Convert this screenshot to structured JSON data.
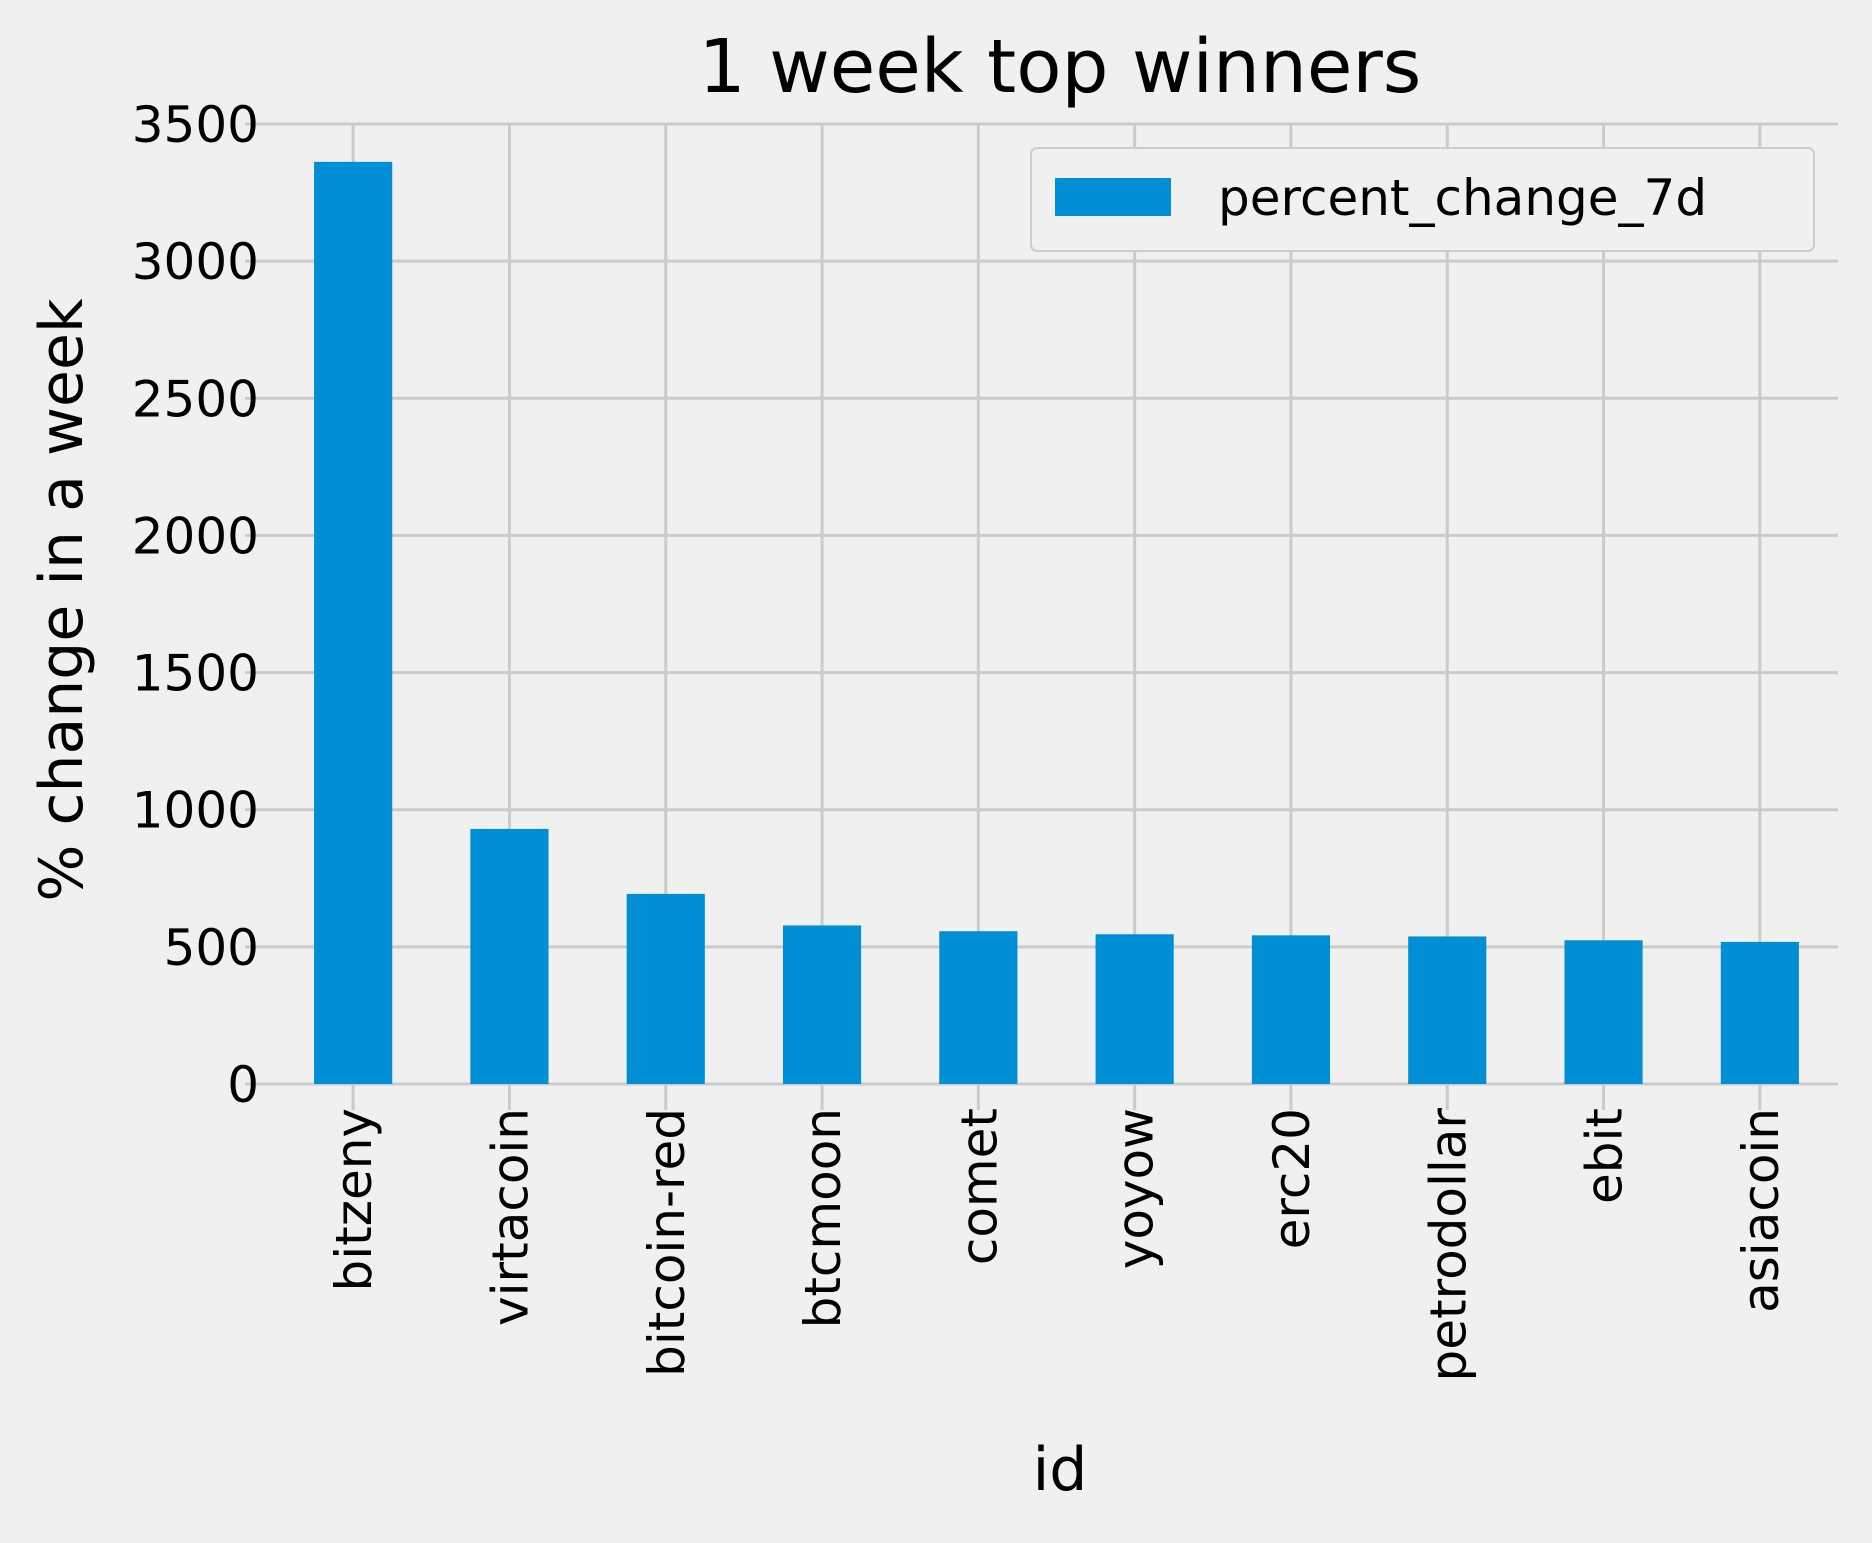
{
  "chart_data": {
    "type": "bar",
    "title": "1 week top winners",
    "xlabel": "id",
    "ylabel": "% change in a week",
    "categories": [
      "bitzeny",
      "virtacoin",
      "bitcoin-red",
      "btcmoon",
      "comet",
      "yoyow",
      "erc20",
      "petrodollar",
      "ebit",
      "asiacoin"
    ],
    "series": [
      {
        "name": "percent_change_7d",
        "values": [
          3362,
          930,
          693,
          578,
          557,
          546,
          542,
          538,
          524,
          518
        ],
        "color": "#008fd5"
      }
    ],
    "ylim": [
      0,
      3500
    ],
    "yticks": [
      "0",
      "500",
      "1000",
      "1500",
      "2000",
      "2500",
      "3000",
      "3500"
    ],
    "grid": true,
    "legend_position": "top-right",
    "colors": {
      "background": "#f0f0f0",
      "grid": "#cbcbcb",
      "bar": "#008fd5"
    }
  }
}
